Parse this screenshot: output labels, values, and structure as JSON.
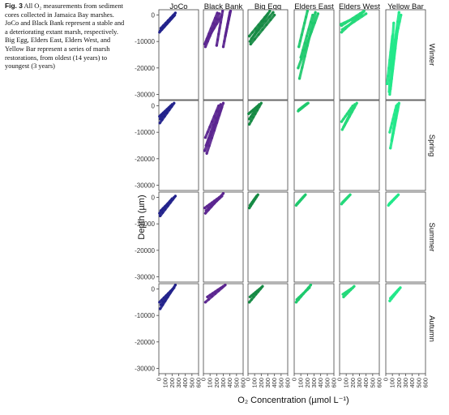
{
  "caption": {
    "label": "Fig. 3",
    "text": "All O₂ measurements from sediment cores collected in Jamaica Bay marshes. JoCo and Black Bank represent a stable and a deteriorating extant marsh, respectively. Big Egg, Elders East, Elders West, and Yellow Bar represent a series of marsh restorations, from oldest (14 years) to youngest (3 years)"
  },
  "chart_data": {
    "type": "scatter",
    "layout": "facet-grid",
    "xlabel": "O₂ Concentration (µmol L⁻¹)",
    "ylabel": "Depth (µm)",
    "xlim": [
      0,
      600
    ],
    "ylim": [
      -32000,
      2000
    ],
    "x_ticks": [
      0,
      100,
      200,
      300,
      400,
      500,
      600
    ],
    "y_ticks": [
      0,
      -10000,
      -20000,
      -30000
    ],
    "columns": [
      "JoCo",
      "Black Bank",
      "Big Egg",
      "Elders East",
      "Elders West",
      "Yellow Bar"
    ],
    "rows": [
      "Winter",
      "Spring",
      "Summer",
      "Autumn"
    ],
    "colors": {
      "JoCo": "#23238c",
      "Black Bank": "#5b2590",
      "Big Egg": "#168a44",
      "Elders East": "#1ec96d",
      "Elders West": "#24d97a",
      "Yellow Bar": "#22e88a"
    },
    "legend": "none",
    "grid": false,
    "panels": [
      {
        "row": "Winter",
        "col": "JoCo",
        "profiles": [
          {
            "x0": 240,
            "x1": 20,
            "d0": 0,
            "d1": -6000
          },
          {
            "x0": 250,
            "x1": 30,
            "d0": 800,
            "d1": -5000
          },
          {
            "x0": 230,
            "x1": 10,
            "d0": -300,
            "d1": -6500
          }
        ]
      },
      {
        "row": "Winter",
        "col": "Black Bank",
        "profiles": [
          {
            "x0": 240,
            "x1": 30,
            "d0": 500,
            "d1": -12000
          },
          {
            "x0": 280,
            "x1": 40,
            "d0": 0,
            "d1": -10000
          },
          {
            "x0": 210,
            "x1": 20,
            "d0": 800,
            "d1": -11000
          },
          {
            "x0": 290,
            "x1": 200,
            "d0": 1500,
            "d1": -11500
          },
          {
            "x0": 400,
            "x1": 300,
            "d0": 1000,
            "d1": -12000
          },
          {
            "x0": 410,
            "x1": 330,
            "d0": 1500,
            "d1": -8000
          }
        ]
      },
      {
        "row": "Winter",
        "col": "Big Egg",
        "profiles": [
          {
            "x0": 330,
            "x1": 30,
            "d0": 1500,
            "d1": -10000
          },
          {
            "x0": 380,
            "x1": 50,
            "d0": 1000,
            "d1": -9000
          },
          {
            "x0": 400,
            "x1": 40,
            "d0": 0,
            "d1": -11000
          },
          {
            "x0": 300,
            "x1": 20,
            "d0": 500,
            "d1": -8000
          }
        ]
      },
      {
        "row": "Winter",
        "col": "Elders East",
        "profiles": [
          {
            "x0": 320,
            "x1": 80,
            "d0": 1000,
            "d1": -24000
          },
          {
            "x0": 360,
            "x1": 60,
            "d0": 500,
            "d1": -20000
          },
          {
            "x0": 280,
            "x1": 100,
            "d0": 0,
            "d1": -16000
          },
          {
            "x0": 200,
            "x1": 70,
            "d0": 1500,
            "d1": -12000
          }
        ]
      },
      {
        "row": "Winter",
        "col": "Elders West",
        "profiles": [
          {
            "x0": 370,
            "x1": 30,
            "d0": 1500,
            "d1": -4000
          },
          {
            "x0": 400,
            "x1": 40,
            "d0": 500,
            "d1": -5500
          },
          {
            "x0": 330,
            "x1": 20,
            "d0": 0,
            "d1": -3500
          },
          {
            "x0": 360,
            "x1": 30,
            "d0": 1200,
            "d1": -6500
          }
        ]
      },
      {
        "row": "Winter",
        "col": "Yellow Bar",
        "profiles": [
          {
            "x0": 120,
            "x1": 50,
            "d0": -3000,
            "d1": -29000
          },
          {
            "x0": 180,
            "x1": 70,
            "d0": -5000,
            "d1": -28000
          },
          {
            "x0": 100,
            "x1": 20,
            "d0": -8000,
            "d1": -26000
          },
          {
            "x0": 140,
            "x1": 60,
            "d0": -12000,
            "d1": -30000
          },
          {
            "x0": 200,
            "x1": 80,
            "d0": 1000,
            "d1": -20000
          },
          {
            "x0": 230,
            "x1": 100,
            "d0": 0,
            "d1": -15000
          }
        ]
      },
      {
        "row": "Spring",
        "col": "JoCo",
        "profiles": [
          {
            "x0": 230,
            "x1": 15,
            "d0": 1000,
            "d1": -6500
          },
          {
            "x0": 200,
            "x1": 20,
            "d0": 500,
            "d1": -5000
          },
          {
            "x0": 180,
            "x1": 10,
            "d0": 0,
            "d1": -4000
          }
        ]
      },
      {
        "row": "Spring",
        "col": "Black Bank",
        "profiles": [
          {
            "x0": 300,
            "x1": 20,
            "d0": 1000,
            "d1": -17000
          },
          {
            "x0": 260,
            "x1": 40,
            "d0": 500,
            "d1": -15000
          },
          {
            "x0": 230,
            "x1": 30,
            "d0": 0,
            "d1": -12000
          },
          {
            "x0": 280,
            "x1": 50,
            "d0": -500,
            "d1": -18000
          }
        ]
      },
      {
        "row": "Spring",
        "col": "Big Egg",
        "profiles": [
          {
            "x0": 200,
            "x1": 20,
            "d0": 1000,
            "d1": -7000
          },
          {
            "x0": 170,
            "x1": 20,
            "d0": 500,
            "d1": -5000
          },
          {
            "x0": 150,
            "x1": 10,
            "d0": 0,
            "d1": -3000
          }
        ]
      },
      {
        "row": "Spring",
        "col": "Elders East",
        "profiles": [
          {
            "x0": 210,
            "x1": 60,
            "d0": 1000,
            "d1": -2000
          },
          {
            "x0": 190,
            "x1": 70,
            "d0": 800,
            "d1": -1500
          }
        ]
      },
      {
        "row": "Spring",
        "col": "Elders West",
        "profiles": [
          {
            "x0": 260,
            "x1": 40,
            "d0": 1000,
            "d1": -9000
          },
          {
            "x0": 230,
            "x1": 60,
            "d0": 500,
            "d1": -8000
          },
          {
            "x0": 200,
            "x1": 30,
            "d0": 0,
            "d1": -6000
          }
        ]
      },
      {
        "row": "Spring",
        "col": "Yellow Bar",
        "profiles": [
          {
            "x0": 200,
            "x1": 70,
            "d0": 1000,
            "d1": -16000
          },
          {
            "x0": 180,
            "x1": 90,
            "d0": 500,
            "d1": -13000
          },
          {
            "x0": 160,
            "x1": 60,
            "d0": 0,
            "d1": -10000
          }
        ]
      },
      {
        "row": "Summer",
        "col": "JoCo",
        "profiles": [
          {
            "x0": 250,
            "x1": 20,
            "d0": 500,
            "d1": -7000
          },
          {
            "x0": 230,
            "x1": 30,
            "d0": 0,
            "d1": -5000
          },
          {
            "x0": 200,
            "x1": 10,
            "d0": -500,
            "d1": -6000
          }
        ]
      },
      {
        "row": "Summer",
        "col": "Black Bank",
        "profiles": [
          {
            "x0": 300,
            "x1": 30,
            "d0": 1500,
            "d1": -6000
          },
          {
            "x0": 280,
            "x1": 40,
            "d0": 500,
            "d1": -5000
          },
          {
            "x0": 240,
            "x1": 20,
            "d0": 0,
            "d1": -4000
          }
        ]
      },
      {
        "row": "Summer",
        "col": "Big Egg",
        "profiles": [
          {
            "x0": 150,
            "x1": 20,
            "d0": 1000,
            "d1": -4000
          },
          {
            "x0": 130,
            "x1": 30,
            "d0": 500,
            "d1": -3000
          }
        ]
      },
      {
        "row": "Summer",
        "col": "Elders East",
        "profiles": [
          {
            "x0": 170,
            "x1": 30,
            "d0": 1000,
            "d1": -3000
          },
          {
            "x0": 150,
            "x1": 40,
            "d0": 500,
            "d1": -2500
          }
        ]
      },
      {
        "row": "Summer",
        "col": "Elders West",
        "profiles": [
          {
            "x0": 160,
            "x1": 30,
            "d0": 1000,
            "d1": -2500
          },
          {
            "x0": 140,
            "x1": 40,
            "d0": 500,
            "d1": -2000
          }
        ]
      },
      {
        "row": "Summer",
        "col": "Yellow Bar",
        "profiles": [
          {
            "x0": 190,
            "x1": 40,
            "d0": 1000,
            "d1": -3000
          },
          {
            "x0": 170,
            "x1": 50,
            "d0": 500,
            "d1": -2500
          }
        ]
      },
      {
        "row": "Autumn",
        "col": "JoCo",
        "profiles": [
          {
            "x0": 250,
            "x1": 20,
            "d0": 1500,
            "d1": -7500
          },
          {
            "x0": 230,
            "x1": 30,
            "d0": 500,
            "d1": -6000
          },
          {
            "x0": 210,
            "x1": 10,
            "d0": 0,
            "d1": -5000
          }
        ]
      },
      {
        "row": "Autumn",
        "col": "Black Bank",
        "profiles": [
          {
            "x0": 330,
            "x1": 30,
            "d0": 1500,
            "d1": -5000
          },
          {
            "x0": 300,
            "x1": 60,
            "d0": 1000,
            "d1": -3000
          }
        ]
      },
      {
        "row": "Autumn",
        "col": "Big Egg",
        "profiles": [
          {
            "x0": 220,
            "x1": 20,
            "d0": 1000,
            "d1": -5000
          },
          {
            "x0": 200,
            "x1": 30,
            "d0": 500,
            "d1": -3000
          }
        ]
      },
      {
        "row": "Autumn",
        "col": "Elders East",
        "profiles": [
          {
            "x0": 250,
            "x1": 30,
            "d0": 1500,
            "d1": -5000
          },
          {
            "x0": 230,
            "x1": 40,
            "d0": 500,
            "d1": -4000
          }
        ]
      },
      {
        "row": "Autumn",
        "col": "Elders West",
        "profiles": [
          {
            "x0": 220,
            "x1": 60,
            "d0": 1000,
            "d1": -3000
          },
          {
            "x0": 200,
            "x1": 50,
            "d0": 500,
            "d1": -2000
          }
        ]
      },
      {
        "row": "Autumn",
        "col": "Yellow Bar",
        "profiles": [
          {
            "x0": 220,
            "x1": 60,
            "d0": 500,
            "d1": -4500
          },
          {
            "x0": 200,
            "x1": 70,
            "d0": 0,
            "d1": -3500
          }
        ]
      }
    ]
  }
}
